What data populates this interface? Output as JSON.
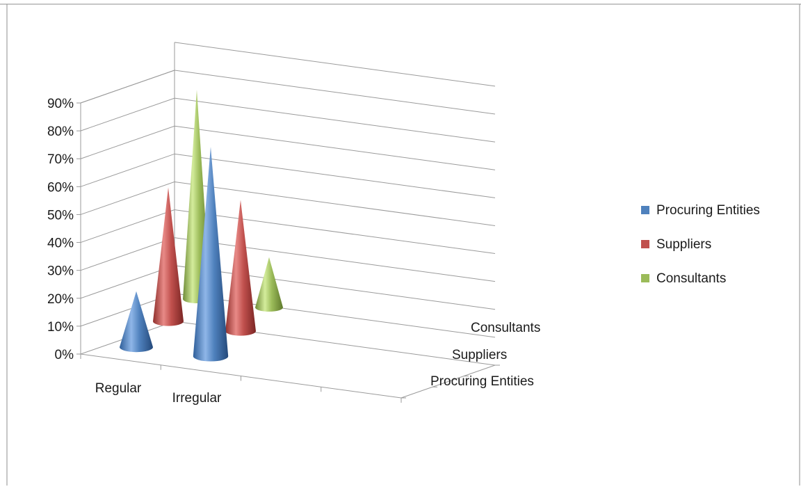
{
  "chart_data": {
    "type": "3d-cone-column",
    "categories": [
      "Regular",
      "Irregular"
    ],
    "depth_categories": [
      "Procuring Entities",
      "Suppliers",
      "Consultants"
    ],
    "series": [
      {
        "name": "Procuring Entities",
        "color": "#4F81BD",
        "values": [
          20,
          75
        ]
      },
      {
        "name": "Suppliers",
        "color": "#C0504D",
        "values": [
          48,
          47
        ]
      },
      {
        "name": "Consultants",
        "color": "#9BBB59",
        "values": [
          75,
          18
        ]
      }
    ],
    "y_ticks": [
      "0%",
      "10%",
      "20%",
      "30%",
      "40%",
      "50%",
      "60%",
      "70%",
      "80%",
      "90%"
    ],
    "ylim": [
      0,
      90
    ],
    "y_unit": "%",
    "grid": true,
    "legend": {
      "position": "right",
      "items": [
        {
          "label": "Procuring Entities",
          "color": "#4F81BD"
        },
        {
          "label": "Suppliers",
          "color": "#C0504D"
        },
        {
          "label": "Consultants",
          "color": "#9BBB59"
        }
      ]
    }
  }
}
